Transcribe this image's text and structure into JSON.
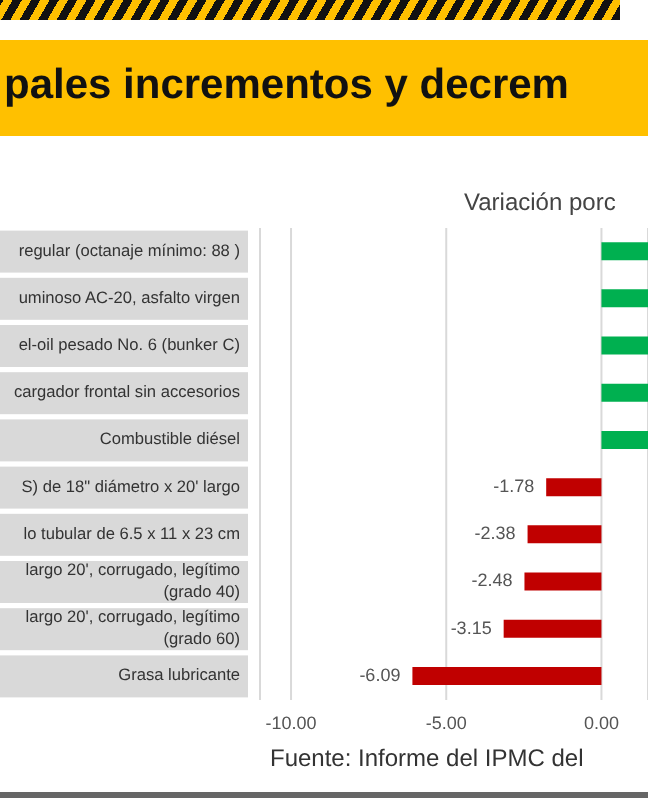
{
  "chart_data": {
    "type": "bar",
    "orientation": "horizontal",
    "title": "pales incrementos y decrem",
    "subtitle": "Variación porc",
    "annotations": [
      "Fuente: Informe del IPMC del"
    ],
    "categories": [
      "regular (octanaje mínimo: 88 )",
      "uminoso AC-20, asfalto virgen",
      "el-oil pesado No. 6 (bunker C)",
      "cargador frontal sin accesorios",
      "Combustible diésel",
      "S) de 18\" diámetro x 20' largo",
      "lo tubular de 6.5 x 11 x 23 cm",
      "largo 20', corrugado, legítimo (grado 40)",
      "largo 20', corrugado, legítimo (grado 60)",
      "Grasa lubricante"
    ],
    "values": [
      1.5,
      1.5,
      1.5,
      1.5,
      1.5,
      -1.78,
      -2.38,
      -2.48,
      -3.15,
      -6.09
    ],
    "colors": [
      "#00b050",
      "#00b050",
      "#00b050",
      "#00b050",
      "#00b050",
      "#c00000",
      "#c00000",
      "#c00000",
      "#c00000",
      "#c00000"
    ],
    "value_labels": [
      null,
      null,
      null,
      null,
      null,
      "-1.78",
      "-2.38",
      "-2.48",
      "-3.15",
      "-6.09"
    ],
    "xlim": [
      -11,
      1.5
    ],
    "xticks": [
      {
        "value": -10,
        "label": "-10.00"
      },
      {
        "value": -5,
        "label": "-5.00"
      },
      {
        "value": 0,
        "label": "0.00"
      }
    ],
    "grid": "x"
  }
}
